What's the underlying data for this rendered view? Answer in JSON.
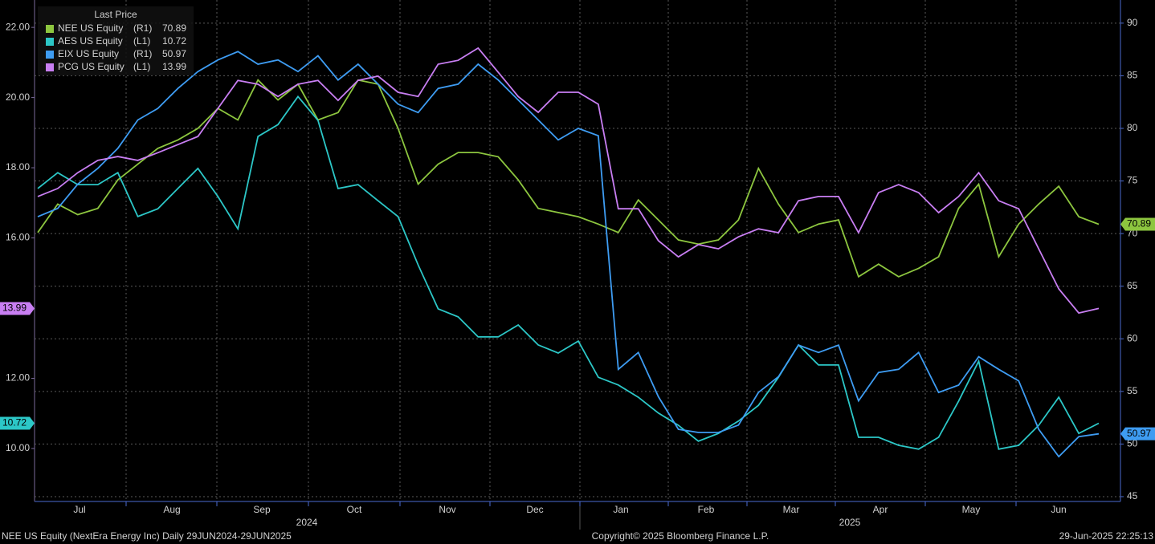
{
  "chart_data": {
    "type": "line",
    "legend_title": "Last Price",
    "footer_left": "NEE US Equity (NextEra Energy Inc)  Daily 29JUN2024-29JUN2025",
    "footer_center": "Copyright© 2025 Bloomberg Finance L.P.",
    "footer_right": "29-Jun-2025 22:25:13",
    "month_labels": [
      "Jul",
      "Aug",
      "Sep",
      "Oct",
      "Nov",
      "Dec",
      "Jan",
      "Feb",
      "Mar",
      "Apr",
      "May",
      "Jun"
    ],
    "year_labels": [
      "2024",
      "2025"
    ],
    "ylim": [
      8.49,
      22.78
    ],
    "yticks": [
      {
        "value": 10,
        "label": "10.00"
      },
      {
        "value": 12,
        "label": "12.00"
      },
      {
        "value": 16,
        "label": "16.00"
      },
      {
        "value": 18,
        "label": "18.00"
      },
      {
        "value": 20,
        "label": "20.00"
      },
      {
        "value": 22,
        "label": "22.00"
      }
    ],
    "y2lim": [
      44.54,
      92.2
    ],
    "y2ticks": [
      45,
      50,
      55,
      60,
      65,
      70,
      75,
      80,
      85,
      90
    ],
    "grid": true,
    "series": [
      {
        "name": "NEE US Equity",
        "axis_label": "(R1)",
        "axis": "y2",
        "color": "#8dc63f",
        "values": [
          70.1,
          72.8,
          71.8,
          72.4,
          75.1,
          76.6,
          78.1,
          78.9,
          80.0,
          81.9,
          80.8,
          84.6,
          82.7,
          84.2,
          80.8,
          81.5,
          84.6,
          84.2,
          80.0,
          74.7,
          76.6,
          77.7,
          77.7,
          77.3,
          75.1,
          72.4,
          72.0,
          71.6,
          70.9,
          70.1,
          73.2,
          71.3,
          69.4,
          69.0,
          69.4,
          71.3,
          76.2,
          72.8,
          70.1,
          70.9,
          71.3,
          65.9,
          67.1,
          65.9,
          66.7,
          67.8,
          72.4,
          74.7,
          67.8,
          70.9,
          72.8,
          74.5,
          71.6,
          70.89
        ]
      },
      {
        "name": "AES US Equity",
        "axis_label": "(L1)",
        "axis": "y",
        "color": "#2cc7c7",
        "values": [
          17.41,
          17.86,
          17.52,
          17.52,
          17.86,
          16.61,
          16.83,
          17.41,
          17.98,
          17.18,
          16.26,
          18.89,
          19.23,
          20.03,
          19.35,
          17.41,
          17.52,
          17.06,
          16.61,
          15.23,
          13.98,
          13.75,
          13.18,
          13.18,
          13.52,
          12.95,
          12.72,
          13.06,
          12.03,
          11.81,
          11.46,
          11.01,
          10.66,
          10.21,
          10.43,
          10.78,
          11.23,
          12.03,
          12.95,
          12.38,
          12.38,
          10.32,
          10.32,
          10.09,
          9.98,
          10.32,
          11.35,
          12.49,
          9.98,
          10.09,
          10.66,
          11.46,
          10.43,
          10.72
        ]
      },
      {
        "name": "EIX US Equity",
        "axis_label": "(R1)",
        "axis": "y2",
        "color": "#3e9cf2",
        "values": [
          71.6,
          72.4,
          74.7,
          76.2,
          78.1,
          80.8,
          81.9,
          83.8,
          85.4,
          86.5,
          87.3,
          86.1,
          86.5,
          85.4,
          86.9,
          84.6,
          86.1,
          84.2,
          82.3,
          81.5,
          83.8,
          84.2,
          86.1,
          84.6,
          82.7,
          80.8,
          78.9,
          80.0,
          79.3,
          57.1,
          58.7,
          54.5,
          51.4,
          51.1,
          51.1,
          51.8,
          54.9,
          56.4,
          59.4,
          58.7,
          59.4,
          54.1,
          56.8,
          57.1,
          58.7,
          54.9,
          55.6,
          58.3,
          57.1,
          56.0,
          51.4,
          48.8,
          50.7,
          50.97
        ]
      },
      {
        "name": "PCG US Equity",
        "axis_label": "(L1)",
        "axis": "y",
        "color": "#c87ef2",
        "values": [
          17.18,
          17.41,
          17.86,
          18.21,
          18.32,
          18.21,
          18.43,
          18.66,
          18.89,
          19.69,
          20.49,
          20.38,
          20.03,
          20.38,
          20.49,
          19.92,
          20.49,
          20.61,
          20.15,
          20.03,
          20.95,
          21.06,
          21.41,
          20.72,
          20.03,
          19.58,
          20.15,
          20.15,
          19.81,
          16.83,
          16.83,
          15.92,
          15.46,
          15.81,
          15.69,
          16.03,
          16.26,
          16.15,
          17.06,
          17.18,
          17.18,
          16.15,
          17.29,
          17.52,
          17.29,
          16.72,
          17.18,
          17.86,
          17.06,
          16.83,
          15.69,
          14.55,
          13.86,
          13.99
        ]
      }
    ]
  }
}
